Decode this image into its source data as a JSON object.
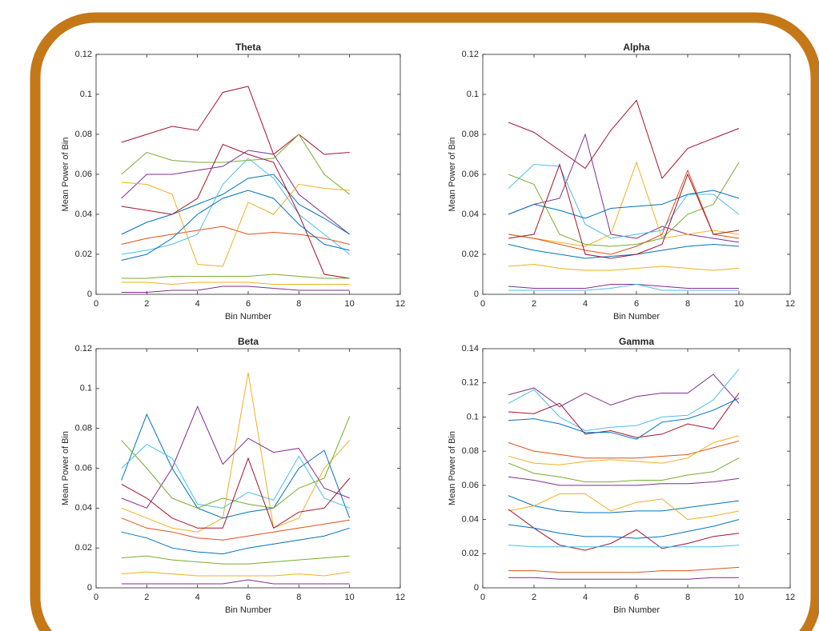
{
  "chart_data": [
    {
      "type": "line",
      "title": "Theta",
      "xlabel": "Bin Number",
      "ylabel": "Mean Power of Bin",
      "x": [
        1,
        2,
        3,
        4,
        5,
        6,
        7,
        8,
        9,
        10
      ],
      "xlim": [
        0,
        12
      ],
      "xticks": [
        0,
        2,
        4,
        6,
        8,
        10,
        12
      ],
      "ylim": [
        0,
        0.12
      ],
      "yticks": [
        0,
        0.02,
        0.04,
        0.06,
        0.08,
        0.1,
        0.12
      ],
      "series": [
        {
          "color": "#A2142F",
          "values": [
            0.076,
            0.08,
            0.084,
            0.082,
            0.101,
            0.104,
            0.07,
            0.08,
            0.07,
            0.071
          ]
        },
        {
          "color": "#77AC30",
          "values": [
            0.06,
            0.071,
            0.067,
            0.066,
            0.066,
            0.067,
            0.068,
            0.08,
            0.06,
            0.05
          ]
        },
        {
          "color": "#7E2F8E",
          "values": [
            0.048,
            0.06,
            0.06,
            0.062,
            0.064,
            0.072,
            0.07,
            0.05,
            0.04,
            0.03
          ]
        },
        {
          "color": "#0072BD",
          "values": [
            0.03,
            0.036,
            0.04,
            0.045,
            0.05,
            0.058,
            0.06,
            0.045,
            0.038,
            0.03
          ]
        },
        {
          "color": "#D95319",
          "values": [
            0.025,
            0.028,
            0.03,
            0.032,
            0.034,
            0.03,
            0.031,
            0.03,
            0.028,
            0.025
          ]
        },
        {
          "color": "#EDB120",
          "values": [
            0.056,
            0.055,
            0.05,
            0.015,
            0.014,
            0.046,
            0.04,
            0.055,
            0.053,
            0.052
          ]
        },
        {
          "color": "#4DBEEE",
          "values": [
            0.02,
            0.022,
            0.025,
            0.03,
            0.055,
            0.068,
            0.058,
            0.04,
            0.03,
            0.02
          ]
        },
        {
          "color": "#A2142F",
          "values": [
            0.044,
            0.042,
            0.04,
            0.048,
            0.075,
            0.07,
            0.066,
            0.04,
            0.01,
            0.008
          ]
        },
        {
          "color": "#77AC30",
          "values": [
            0.008,
            0.008,
            0.009,
            0.009,
            0.009,
            0.009,
            0.01,
            0.009,
            0.008,
            0.008
          ]
        },
        {
          "color": "#7E2F8E",
          "values": [
            0.001,
            0.001,
            0.002,
            0.002,
            0.004,
            0.004,
            0.003,
            0.002,
            0.002,
            0.002
          ]
        },
        {
          "color": "#0072BD",
          "values": [
            0.017,
            0.02,
            0.028,
            0.04,
            0.048,
            0.052,
            0.048,
            0.035,
            0.025,
            0.022
          ]
        },
        {
          "color": "#EDB120",
          "values": [
            0.006,
            0.006,
            0.005,
            0.006,
            0.006,
            0.006,
            0.005,
            0.005,
            0.005,
            0.005
          ]
        }
      ]
    },
    {
      "type": "line",
      "title": "Alpha",
      "xlabel": "Bin Number",
      "ylabel": "Mean Power of Bin",
      "x": [
        1,
        2,
        3,
        4,
        5,
        6,
        7,
        8,
        9,
        10
      ],
      "xlim": [
        0,
        12
      ],
      "xticks": [
        0,
        2,
        4,
        6,
        8,
        10,
        12
      ],
      "ylim": [
        0,
        0.12
      ],
      "yticks": [
        0,
        0.02,
        0.04,
        0.06,
        0.08,
        0.1,
        0.12
      ],
      "series": [
        {
          "color": "#A2142F",
          "values": [
            0.086,
            0.081,
            0.072,
            0.063,
            0.082,
            0.097,
            0.058,
            0.073,
            0.078,
            0.083
          ]
        },
        {
          "color": "#7E2F8E",
          "values": [
            0.04,
            0.045,
            0.048,
            0.08,
            0.03,
            0.028,
            0.034,
            0.03,
            0.028,
            0.026
          ]
        },
        {
          "color": "#4DBEEE",
          "values": [
            0.053,
            0.065,
            0.064,
            0.035,
            0.028,
            0.03,
            0.032,
            0.05,
            0.05,
            0.04
          ]
        },
        {
          "color": "#EDB120",
          "values": [
            0.03,
            0.028,
            0.026,
            0.024,
            0.03,
            0.066,
            0.028,
            0.03,
            0.032,
            0.03
          ]
        },
        {
          "color": "#77AC30",
          "values": [
            0.06,
            0.055,
            0.03,
            0.025,
            0.024,
            0.025,
            0.028,
            0.04,
            0.045,
            0.066
          ]
        },
        {
          "color": "#0072BD",
          "values": [
            0.04,
            0.045,
            0.042,
            0.038,
            0.043,
            0.044,
            0.045,
            0.05,
            0.052,
            0.048
          ]
        },
        {
          "color": "#D95319",
          "values": [
            0.03,
            0.028,
            0.025,
            0.022,
            0.02,
            0.024,
            0.03,
            0.062,
            0.03,
            0.028
          ]
        },
        {
          "color": "#0072BD",
          "values": [
            0.025,
            0.022,
            0.02,
            0.018,
            0.019,
            0.02,
            0.022,
            0.024,
            0.025,
            0.024
          ]
        },
        {
          "color": "#7E2F8E",
          "values": [
            0.004,
            0.003,
            0.003,
            0.003,
            0.005,
            0.005,
            0.004,
            0.003,
            0.003,
            0.003
          ]
        },
        {
          "color": "#4DBEEE",
          "values": [
            0.002,
            0.002,
            0.002,
            0.002,
            0.003,
            0.005,
            0.002,
            0.002,
            0.002,
            0.002
          ]
        },
        {
          "color": "#EDB120",
          "values": [
            0.014,
            0.015,
            0.013,
            0.012,
            0.012,
            0.013,
            0.014,
            0.013,
            0.012,
            0.013
          ]
        },
        {
          "color": "#A2142F",
          "values": [
            0.028,
            0.03,
            0.065,
            0.02,
            0.018,
            0.02,
            0.025,
            0.06,
            0.03,
            0.032
          ]
        }
      ]
    },
    {
      "type": "line",
      "title": "Beta",
      "xlabel": "Bin Number",
      "ylabel": "Mean Power of Bin",
      "x": [
        1,
        2,
        3,
        4,
        5,
        6,
        7,
        8,
        9,
        10
      ],
      "xlim": [
        0,
        12
      ],
      "xticks": [
        0,
        2,
        4,
        6,
        8,
        10,
        12
      ],
      "ylim": [
        0,
        0.12
      ],
      "yticks": [
        0,
        0.02,
        0.04,
        0.06,
        0.08,
        0.1,
        0.12
      ],
      "series": [
        {
          "color": "#EDB120",
          "values": [
            0.04,
            0.035,
            0.03,
            0.028,
            0.035,
            0.108,
            0.03,
            0.035,
            0.06,
            0.074
          ]
        },
        {
          "color": "#7E2F8E",
          "values": [
            0.045,
            0.04,
            0.06,
            0.091,
            0.062,
            0.075,
            0.068,
            0.07,
            0.05,
            0.045
          ]
        },
        {
          "color": "#0072BD",
          "values": [
            0.054,
            0.087,
            0.06,
            0.04,
            0.035,
            0.038,
            0.04,
            0.06,
            0.069,
            0.035
          ]
        },
        {
          "color": "#4DBEEE",
          "values": [
            0.06,
            0.072,
            0.065,
            0.042,
            0.04,
            0.048,
            0.044,
            0.066,
            0.045,
            0.04
          ]
        },
        {
          "color": "#77AC30",
          "values": [
            0.074,
            0.06,
            0.045,
            0.04,
            0.045,
            0.042,
            0.04,
            0.05,
            0.055,
            0.086
          ]
        },
        {
          "color": "#A2142F",
          "values": [
            0.052,
            0.045,
            0.035,
            0.03,
            0.03,
            0.065,
            0.03,
            0.038,
            0.04,
            0.055
          ]
        },
        {
          "color": "#D95319",
          "values": [
            0.035,
            0.03,
            0.028,
            0.025,
            0.024,
            0.026,
            0.028,
            0.03,
            0.032,
            0.034
          ]
        },
        {
          "color": "#0072BD",
          "values": [
            0.028,
            0.025,
            0.02,
            0.018,
            0.017,
            0.02,
            0.022,
            0.024,
            0.026,
            0.03
          ]
        },
        {
          "color": "#EDB120",
          "values": [
            0.007,
            0.008,
            0.007,
            0.006,
            0.006,
            0.006,
            0.006,
            0.007,
            0.006,
            0.008
          ]
        },
        {
          "color": "#7E2F8E",
          "values": [
            0.002,
            0.002,
            0.002,
            0.002,
            0.002,
            0.004,
            0.002,
            0.002,
            0.002,
            0.002
          ]
        },
        {
          "color": "#77AC30",
          "values": [
            0.015,
            0.016,
            0.014,
            0.013,
            0.012,
            0.012,
            0.013,
            0.014,
            0.015,
            0.016
          ]
        }
      ]
    },
    {
      "type": "line",
      "title": "Gamma",
      "xlabel": "Bin Number",
      "ylabel": "Mean Power of Bin",
      "x": [
        1,
        2,
        3,
        4,
        5,
        6,
        7,
        8,
        9,
        10
      ],
      "xlim": [
        0,
        12
      ],
      "xticks": [
        0,
        2,
        4,
        6,
        8,
        10,
        12
      ],
      "ylim": [
        0,
        0.14
      ],
      "yticks": [
        0,
        0.02,
        0.04,
        0.06,
        0.08,
        0.1,
        0.12,
        0.14
      ],
      "series": [
        {
          "color": "#7E2F8E",
          "values": [
            0.113,
            0.117,
            0.106,
            0.114,
            0.107,
            0.112,
            0.114,
            0.114,
            0.125,
            0.108
          ]
        },
        {
          "color": "#4DBEEE",
          "values": [
            0.108,
            0.116,
            0.1,
            0.092,
            0.094,
            0.095,
            0.1,
            0.101,
            0.11,
            0.128
          ]
        },
        {
          "color": "#A2142F",
          "values": [
            0.103,
            0.102,
            0.108,
            0.09,
            0.092,
            0.088,
            0.09,
            0.096,
            0.093,
            0.114
          ]
        },
        {
          "color": "#0072BD",
          "values": [
            0.098,
            0.099,
            0.096,
            0.091,
            0.091,
            0.087,
            0.097,
            0.099,
            0.104,
            0.111
          ]
        },
        {
          "color": "#D95319",
          "values": [
            0.085,
            0.08,
            0.078,
            0.076,
            0.076,
            0.076,
            0.077,
            0.078,
            0.082,
            0.086
          ]
        },
        {
          "color": "#EDB120",
          "values": [
            0.077,
            0.073,
            0.072,
            0.074,
            0.075,
            0.074,
            0.073,
            0.076,
            0.085,
            0.089
          ]
        },
        {
          "color": "#77AC30",
          "values": [
            0.073,
            0.067,
            0.065,
            0.062,
            0.062,
            0.063,
            0.063,
            0.066,
            0.068,
            0.076
          ]
        },
        {
          "color": "#7E2F8E",
          "values": [
            0.065,
            0.063,
            0.06,
            0.06,
            0.06,
            0.06,
            0.061,
            0.061,
            0.062,
            0.064
          ]
        },
        {
          "color": "#0072BD",
          "values": [
            0.054,
            0.048,
            0.045,
            0.044,
            0.044,
            0.045,
            0.045,
            0.047,
            0.049,
            0.051
          ]
        },
        {
          "color": "#EDB120",
          "values": [
            0.045,
            0.048,
            0.055,
            0.055,
            0.045,
            0.05,
            0.052,
            0.04,
            0.042,
            0.045
          ]
        },
        {
          "color": "#A2142F",
          "values": [
            0.046,
            0.035,
            0.025,
            0.022,
            0.026,
            0.034,
            0.023,
            0.026,
            0.03,
            0.032
          ]
        },
        {
          "color": "#0072BD",
          "values": [
            0.037,
            0.035,
            0.032,
            0.03,
            0.03,
            0.029,
            0.03,
            0.033,
            0.036,
            0.04
          ]
        },
        {
          "color": "#4DBEEE",
          "values": [
            0.025,
            0.024,
            0.024,
            0.024,
            0.024,
            0.024,
            0.024,
            0.024,
            0.024,
            0.025
          ]
        },
        {
          "color": "#D95319",
          "values": [
            0.01,
            0.01,
            0.009,
            0.009,
            0.009,
            0.009,
            0.01,
            0.01,
            0.011,
            0.012
          ]
        },
        {
          "color": "#7E2F8E",
          "values": [
            0.006,
            0.006,
            0.005,
            0.005,
            0.005,
            0.005,
            0.005,
            0.005,
            0.006,
            0.006
          ]
        }
      ]
    }
  ]
}
